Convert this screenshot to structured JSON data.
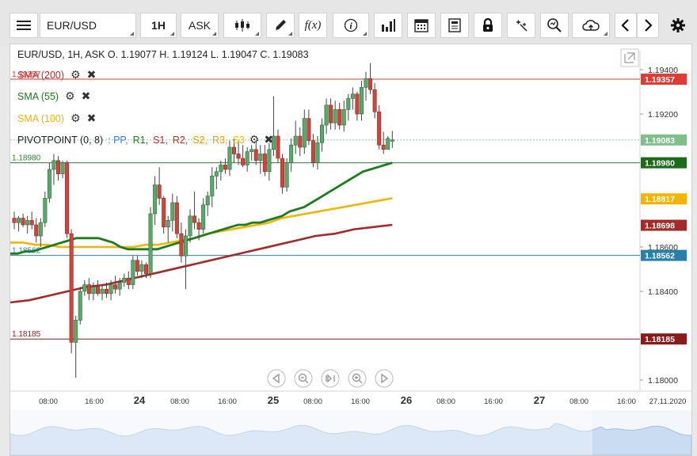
{
  "toolbar": {
    "symbol": "EUR/USD",
    "timeframe": "1H",
    "price_type": "ASK",
    "icons": [
      "menu-icon",
      "candles-icon",
      "draw-icon",
      "function-icon",
      "info-icon",
      "volume-bars-icon",
      "calendar-icon",
      "news-icon",
      "lock-icon",
      "crosshair-icon",
      "zoom-icon",
      "cloud-icon",
      "chevron-left-icon",
      "chevron-right-icon",
      "gear-icon"
    ],
    "function_label": "f(x)",
    "info_label": "i"
  },
  "header": {
    "ohlc": "EUR/USD, 1H, ASK    O. 1.19077 H. 1.19124 L. 1.19047 C. 1.19083"
  },
  "indicators": [
    {
      "label": "SMA (200)",
      "color": "#c62828"
    },
    {
      "label": "SMA (55)",
      "color": "#1b7a1b"
    },
    {
      "label": "SMA (100)",
      "color": "#f5b400"
    }
  ],
  "pivot": {
    "label": "PIVOTPOINT (0, 8)",
    "parts": [
      {
        "text": ": PP,",
        "color": "#3a7bd5"
      },
      {
        "text": "R1,",
        "color": "#1b7a1b"
      },
      {
        "text": "S1,",
        "color": "#c62828"
      },
      {
        "text": "R2,",
        "color": "#c62828"
      },
      {
        "text": "S2,",
        "color": "#f0a000"
      },
      {
        "text": "R3,",
        "color": "#f0a000"
      },
      {
        "text": "S3",
        "color": "#f0c000"
      }
    ]
  },
  "chart_data": {
    "type": "candlestick",
    "symbol": "EUR/USD",
    "timeframe": "1H",
    "ylim": [
      1.1795,
      1.1945
    ],
    "y_ticks": [
      "1.19400",
      "1.19200",
      "1.18600",
      "1.18400",
      "1.18000"
    ],
    "x_ticks": [
      "08:00",
      "16:00",
      "24",
      "08:00",
      "16:00",
      "25",
      "08:00",
      "16:00",
      "26",
      "08:00",
      "16:00",
      "27",
      "08:00",
      "16:00",
      "27.11.2020"
    ],
    "horizontal_lines": [
      {
        "value": 1.19357,
        "label": "1.19357",
        "color": "#e53935"
      },
      {
        "value": 1.1898,
        "label": "1.18980",
        "color": "#2e7d32"
      },
      {
        "value": 1.18562,
        "label": "1.18562",
        "color": "#2a7fa8"
      },
      {
        "value": 1.18185,
        "label": "1.18185",
        "color": "#8b1a1a"
      }
    ],
    "price_labels": [
      {
        "value": 1.19357,
        "label": "1.19357",
        "color": "#e53935"
      },
      {
        "value": 1.19083,
        "label": "1.19083",
        "color": "#7fc08a"
      },
      {
        "value": 1.1898,
        "label": "1.18980",
        "color": "#1b6b1b"
      },
      {
        "value": 1.18817,
        "label": "1.18817",
        "color": "#f5b400"
      },
      {
        "value": 1.18698,
        "label": "1.18698",
        "color": "#a52a2a"
      },
      {
        "value": 1.18562,
        "label": "1.18562",
        "color": "#2a7fa8"
      },
      {
        "value": 1.18185,
        "label": "1.18185",
        "color": "#8b1a1a"
      }
    ],
    "current_price": 1.19083,
    "candles": [
      [
        1.1873,
        1.1876,
        1.1868,
        1.1871
      ],
      [
        1.1871,
        1.1874,
        1.1867,
        1.1873
      ],
      [
        1.1873,
        1.1875,
        1.1869,
        1.187
      ],
      [
        1.187,
        1.1874,
        1.1866,
        1.1872
      ],
      [
        1.1872,
        1.1876,
        1.1868,
        1.187
      ],
      [
        1.187,
        1.1873,
        1.1862,
        1.1865
      ],
      [
        1.1865,
        1.1873,
        1.186,
        1.1871
      ],
      [
        1.1871,
        1.1885,
        1.1869,
        1.1882
      ],
      [
        1.1882,
        1.1898,
        1.188,
        1.1895
      ],
      [
        1.1895,
        1.1902,
        1.1888,
        1.1899
      ],
      [
        1.1899,
        1.1901,
        1.189,
        1.1893
      ],
      [
        1.1893,
        1.1899,
        1.1891,
        1.1898
      ],
      [
        1.1898,
        1.1899,
        1.1864,
        1.1866
      ],
      [
        1.1866,
        1.1868,
        1.1812,
        1.1817
      ],
      [
        1.1817,
        1.1829,
        1.1801,
        1.1827
      ],
      [
        1.1827,
        1.1842,
        1.1825,
        1.184
      ],
      [
        1.184,
        1.1845,
        1.1838,
        1.1843
      ],
      [
        1.1843,
        1.1846,
        1.1836,
        1.1839
      ],
      [
        1.1839,
        1.1844,
        1.1836,
        1.1842
      ],
      [
        1.1842,
        1.1845,
        1.1838,
        1.1839
      ],
      [
        1.1839,
        1.1843,
        1.1836,
        1.1841
      ],
      [
        1.1841,
        1.1844,
        1.1837,
        1.1839
      ],
      [
        1.1839,
        1.1845,
        1.1836,
        1.1843
      ],
      [
        1.1843,
        1.1847,
        1.1839,
        1.1841
      ],
      [
        1.1841,
        1.1846,
        1.1838,
        1.1844
      ],
      [
        1.1844,
        1.1848,
        1.1842,
        1.1846
      ],
      [
        1.1846,
        1.1849,
        1.1841,
        1.1843
      ],
      [
        1.1843,
        1.1856,
        1.1841,
        1.1854
      ],
      [
        1.1854,
        1.1856,
        1.1847,
        1.1849
      ],
      [
        1.1849,
        1.1854,
        1.1846,
        1.1852
      ],
      [
        1.1852,
        1.1853,
        1.1846,
        1.1848
      ],
      [
        1.1848,
        1.1878,
        1.1846,
        1.1875
      ],
      [
        1.1875,
        1.1892,
        1.187,
        1.1888
      ],
      [
        1.1888,
        1.1896,
        1.1879,
        1.1882
      ],
      [
        1.1882,
        1.1883,
        1.1866,
        1.1869
      ],
      [
        1.1869,
        1.1874,
        1.1862,
        1.1872
      ],
      [
        1.1872,
        1.1884,
        1.1867,
        1.188
      ],
      [
        1.188,
        1.1883,
        1.1864,
        1.1866
      ],
      [
        1.1866,
        1.1871,
        1.1853,
        1.1856
      ],
      [
        1.1856,
        1.1868,
        1.1841,
        1.1865
      ],
      [
        1.1865,
        1.1877,
        1.1862,
        1.1874
      ],
      [
        1.1874,
        1.1885,
        1.1868,
        1.1871
      ],
      [
        1.1871,
        1.1873,
        1.1863,
        1.1868
      ],
      [
        1.1868,
        1.1882,
        1.1866,
        1.1879
      ],
      [
        1.1879,
        1.1885,
        1.1874,
        1.1883
      ],
      [
        1.1883,
        1.1896,
        1.1878,
        1.1892
      ],
      [
        1.1892,
        1.1896,
        1.1886,
        1.1894
      ],
      [
        1.1894,
        1.1899,
        1.189,
        1.1897
      ],
      [
        1.1897,
        1.19,
        1.1893,
        1.1895
      ],
      [
        1.1895,
        1.1908,
        1.1892,
        1.1905
      ],
      [
        1.1905,
        1.1909,
        1.1898,
        1.1902
      ],
      [
        1.1902,
        1.1908,
        1.1897,
        1.19
      ],
      [
        1.19,
        1.1906,
        1.1896,
        1.1897
      ],
      [
        1.1897,
        1.1905,
        1.1894,
        1.1903
      ],
      [
        1.1903,
        1.1906,
        1.1899,
        1.1904
      ],
      [
        1.1904,
        1.1907,
        1.1897,
        1.1899
      ],
      [
        1.1899,
        1.1906,
        1.1893,
        1.1902
      ],
      [
        1.1902,
        1.1906,
        1.1892,
        1.1894
      ],
      [
        1.1894,
        1.1907,
        1.189,
        1.1904
      ],
      [
        1.1904,
        1.1928,
        1.1901,
        1.191
      ],
      [
        1.191,
        1.1913,
        1.1898,
        1.19
      ],
      [
        1.19,
        1.1902,
        1.1884,
        1.1887
      ],
      [
        1.1887,
        1.19,
        1.1885,
        1.1898
      ],
      [
        1.1898,
        1.1909,
        1.1894,
        1.1906
      ],
      [
        1.1906,
        1.1917,
        1.1902,
        1.191
      ],
      [
        1.191,
        1.1914,
        1.1901,
        1.1905
      ],
      [
        1.1905,
        1.1922,
        1.1902,
        1.1918
      ],
      [
        1.1918,
        1.1922,
        1.1906,
        1.1908
      ],
      [
        1.1908,
        1.1911,
        1.1896,
        1.1898
      ],
      [
        1.1898,
        1.191,
        1.1895,
        1.1907
      ],
      [
        1.1907,
        1.1918,
        1.1903,
        1.1915
      ],
      [
        1.1915,
        1.1927,
        1.1911,
        1.1924
      ],
      [
        1.1924,
        1.1927,
        1.1913,
        1.1916
      ],
      [
        1.1916,
        1.1926,
        1.1913,
        1.1922
      ],
      [
        1.1922,
        1.1925,
        1.1913,
        1.1915
      ],
      [
        1.1915,
        1.1926,
        1.1912,
        1.1922
      ],
      [
        1.1922,
        1.1929,
        1.1917,
        1.1927
      ],
      [
        1.1927,
        1.1932,
        1.1922,
        1.1929
      ],
      [
        1.1929,
        1.193,
        1.1917,
        1.192
      ],
      [
        1.192,
        1.1935,
        1.1917,
        1.1932
      ],
      [
        1.1932,
        1.1939,
        1.1926,
        1.1936
      ],
      [
        1.1936,
        1.1943,
        1.1929,
        1.1931
      ],
      [
        1.1931,
        1.1934,
        1.1918,
        1.1921
      ],
      [
        1.1921,
        1.1924,
        1.1904,
        1.1906
      ],
      [
        1.1906,
        1.1912,
        1.1902,
        1.1904
      ],
      [
        1.1904,
        1.191,
        1.1904,
        1.1909
      ],
      [
        1.19077,
        1.19124,
        1.19047,
        1.19083
      ]
    ],
    "sma_55": [
      1.1857,
      1.1857,
      1.1858,
      1.1858,
      1.1859,
      1.186,
      1.1861,
      1.1862,
      1.1863,
      1.1864,
      1.1864,
      1.1864,
      1.1864,
      1.1863,
      1.1862,
      1.186,
      1.1859,
      1.1859,
      1.1859,
      1.1859,
      1.1859,
      1.186,
      1.1861,
      1.1862,
      1.1863,
      1.1864,
      1.1865,
      1.1866,
      1.1867,
      1.1868,
      1.1869,
      1.187,
      1.187,
      1.1871,
      1.1871,
      1.1872,
      1.1873,
      1.1874,
      1.1876,
      1.1877,
      1.1878,
      1.188,
      1.1882,
      1.1884,
      1.1886,
      1.1888,
      1.189,
      1.1892,
      1.1894,
      1.1895,
      1.1896,
      1.1897,
      1.1898
    ],
    "sma_100": [
      1.1862,
      1.1862,
      1.1861,
      1.1861,
      1.186,
      1.186,
      1.186,
      1.186,
      1.186,
      1.186,
      1.186,
      1.1861,
      1.1861,
      1.1862,
      1.1863,
      1.1864,
      1.1866,
      1.1867,
      1.1868,
      1.1869,
      1.187,
      1.1871,
      1.1873,
      1.1874,
      1.1875,
      1.1876,
      1.1877,
      1.1878,
      1.1879,
      1.188,
      1.1881,
      1.1882
    ],
    "sma_200": [
      1.1835,
      1.1836,
      1.1838,
      1.184,
      1.1842,
      1.1843,
      1.1845,
      1.1847,
      1.1849,
      1.1851,
      1.1853,
      1.1855,
      1.1857,
      1.1859,
      1.1861,
      1.1863,
      1.1865,
      1.1866,
      1.1868,
      1.1869,
      1.187
    ]
  },
  "navigation": {
    "icons": [
      "scroll-left-icon",
      "zoom-out-icon",
      "reset-view-icon",
      "zoom-in-icon",
      "scroll-right-icon"
    ]
  }
}
